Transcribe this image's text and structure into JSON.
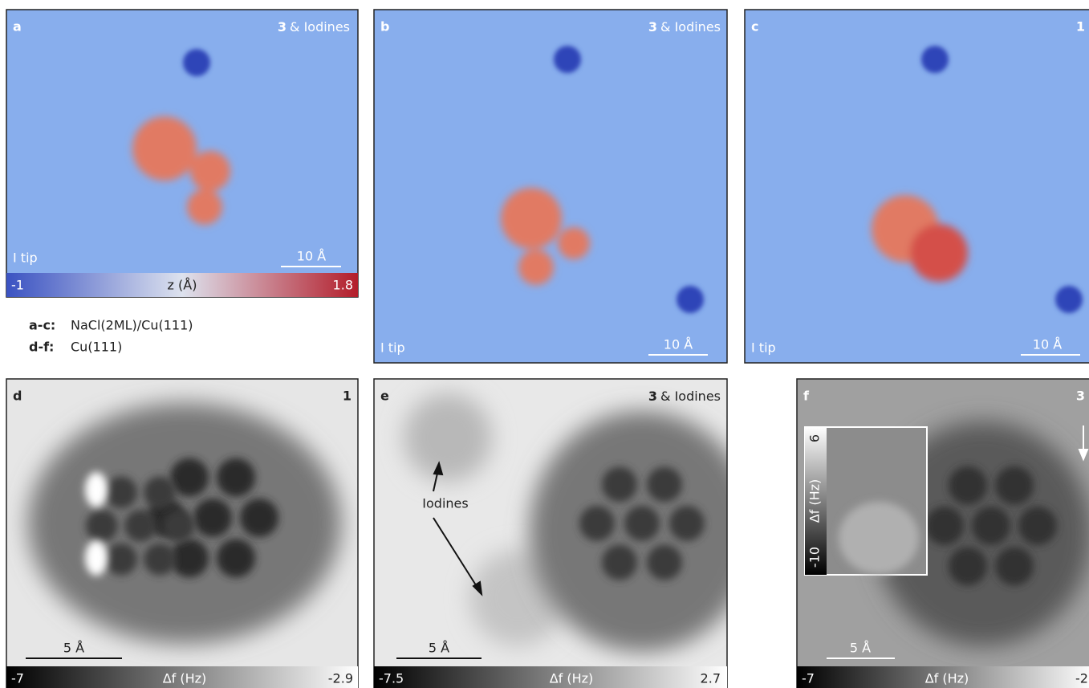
{
  "panels": [
    {
      "letter": "a",
      "compound": "3",
      "suffix": "& Iodines",
      "tip": "I tip",
      "scale_bar": "10 Å",
      "colorbar": {
        "min": -1,
        "label": "z (Å)",
        "max": 1.8
      }
    },
    {
      "letter": "b",
      "compound": "3",
      "suffix": "& Iodines",
      "tip": "I tip",
      "scale_bar": "10 Å"
    },
    {
      "letter": "c",
      "compound": "1",
      "tip": "I tip",
      "scale_bar": "10 Å"
    },
    {
      "letter": "d",
      "compound": "1",
      "scale_bar": "5 Å",
      "colorbar": {
        "min": -7,
        "label": "Δf (Hz)",
        "max": -2.9
      }
    },
    {
      "letter": "e",
      "compound": "3",
      "suffix": "& Iodines",
      "annotation": "Iodines",
      "scale_bar": "5 Å",
      "colorbar": {
        "min": -7.5,
        "label": "Δf (Hz)",
        "max": 2.7
      }
    },
    {
      "letter": "f",
      "compound": "3",
      "scale_bar": "5 Å",
      "inset": {
        "label": "Δf (Hz)",
        "max": 6,
        "min": -10
      },
      "colorbar": {
        "min": -7,
        "label": "Δf (Hz)",
        "max": -2
      }
    }
  ],
  "legend": [
    {
      "key": "a-c:",
      "text": "NaCl(2ML)/Cu(111)"
    },
    {
      "key": "d-f:",
      "text": "Cu(111)"
    }
  ]
}
